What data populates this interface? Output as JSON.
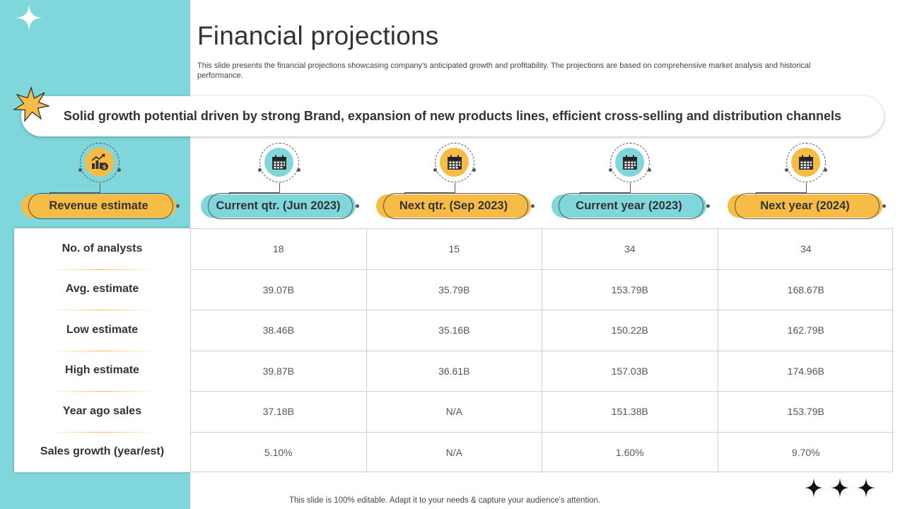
{
  "slide": {
    "title": "Financial projections",
    "description": "This slide presents the financial projections showcasing company's anticipated growth and profitability. The projections are based on comprehensive market analysis and historical performance.",
    "banner": "Solid growth potential driven by strong Brand, expansion of new products lines, efficient cross-selling and distribution channels",
    "footer": "This slide is 100% editable. Adapt it to your needs & capture your audience's attention."
  },
  "colors": {
    "teal": "#7fd6db",
    "yellow": "#f6bc45",
    "text": "#333333"
  },
  "columns": [
    {
      "label": "Revenue estimate",
      "icon": "money-chart-icon",
      "color": "yellow"
    },
    {
      "label": "Current qtr. (Jun 2023)",
      "icon": "calendar-icon",
      "color": "teal"
    },
    {
      "label": "Next qtr. (Sep 2023)",
      "icon": "calendar-icon",
      "color": "yellow"
    },
    {
      "label": "Current year (2023)",
      "icon": "calendar-icon",
      "color": "teal"
    },
    {
      "label": "Next year (2024)",
      "icon": "calendar-icon",
      "color": "yellow"
    }
  ],
  "rows": [
    {
      "label": "No. of analysts",
      "values": [
        "18",
        "15",
        "34",
        "34"
      ]
    },
    {
      "label": "Avg. estimate",
      "values": [
        "39.07B",
        "35.79B",
        "153.79B",
        "168.67B"
      ]
    },
    {
      "label": "Low estimate",
      "values": [
        "38.46B",
        "35.16B",
        "150.22B",
        "162.79B"
      ]
    },
    {
      "label": "High estimate",
      "values": [
        "39.87B",
        "36.61B",
        "157.03B",
        "174.96B"
      ]
    },
    {
      "label": "Year ago sales",
      "values": [
        "37.18B",
        "N/A",
        "151.38B",
        "153.79B"
      ]
    },
    {
      "label": "Sales growth (year/est)",
      "values": [
        "5.10%",
        "N/A",
        "1.60%",
        "9.70%"
      ]
    }
  ]
}
